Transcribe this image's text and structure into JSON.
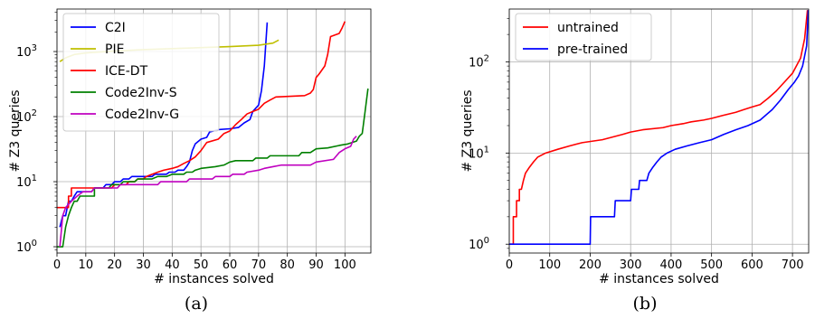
{
  "chart_data": [
    {
      "id": "a",
      "type": "line",
      "caption": "(a)",
      "xlabel": "# instances solved",
      "ylabel": "# Z3 queries",
      "yscale": "log",
      "xlim": [
        0,
        109
      ],
      "ylim": [
        0.8,
        4500
      ],
      "xticks": [
        0,
        10,
        20,
        30,
        40,
        50,
        60,
        70,
        80,
        90,
        100
      ],
      "yticks": [
        {
          "value": 1,
          "base": "10",
          "exp": "0"
        },
        {
          "value": 10,
          "base": "10",
          "exp": "1"
        },
        {
          "value": 100,
          "base": "10",
          "exp": "2"
        },
        {
          "value": 1000,
          "base": "10",
          "exp": "3"
        }
      ],
      "grid": true,
      "legend_position": "top-left",
      "series": [
        {
          "name": "C2I",
          "color": "#0000ff",
          "points": [
            [
              1,
              2
            ],
            [
              2,
              3
            ],
            [
              3,
              3
            ],
            [
              4,
              5
            ],
            [
              5,
              5
            ],
            [
              6,
              6
            ],
            [
              7,
              7
            ],
            [
              12,
              7
            ],
            [
              13,
              8
            ],
            [
              16,
              8
            ],
            [
              17,
              9
            ],
            [
              19,
              9
            ],
            [
              20,
              10
            ],
            [
              22,
              10
            ],
            [
              23,
              11
            ],
            [
              25,
              11
            ],
            [
              26,
              12
            ],
            [
              33,
              12
            ],
            [
              34,
              13
            ],
            [
              38,
              13
            ],
            [
              39,
              14
            ],
            [
              41,
              14
            ],
            [
              42,
              15
            ],
            [
              44,
              15
            ],
            [
              45,
              17
            ],
            [
              46,
              20
            ],
            [
              47,
              30
            ],
            [
              48,
              38
            ],
            [
              50,
              45
            ],
            [
              52,
              48
            ],
            [
              53,
              58
            ],
            [
              56,
              63
            ],
            [
              60,
              65
            ],
            [
              63,
              68
            ],
            [
              65,
              80
            ],
            [
              67,
              90
            ],
            [
              68,
              120
            ],
            [
              70,
              150
            ],
            [
              71,
              250
            ],
            [
              72,
              600
            ],
            [
              73,
              2800
            ]
          ]
        },
        {
          "name": "PIE",
          "color": "#bfbf00",
          "points": [
            [
              1,
              700
            ],
            [
              3,
              800
            ],
            [
              6,
              900
            ],
            [
              10,
              950
            ],
            [
              20,
              1020
            ],
            [
              30,
              1070
            ],
            [
              40,
              1110
            ],
            [
              50,
              1150
            ],
            [
              60,
              1190
            ],
            [
              70,
              1250
            ],
            [
              75,
              1350
            ],
            [
              77,
              1500
            ]
          ]
        },
        {
          "name": "ICE-DT",
          "color": "#ff0000",
          "points": [
            [
              0,
              4
            ],
            [
              4,
              4
            ],
            [
              4,
              6
            ],
            [
              5,
              6
            ],
            [
              5,
              8
            ],
            [
              19,
              8
            ],
            [
              20,
              9
            ],
            [
              24,
              9
            ],
            [
              25,
              10
            ],
            [
              27,
              10
            ],
            [
              28,
              11
            ],
            [
              30,
              11
            ],
            [
              31,
              12
            ],
            [
              33,
              13
            ],
            [
              35,
              14
            ],
            [
              37,
              15
            ],
            [
              40,
              16
            ],
            [
              42,
              17
            ],
            [
              44,
              19
            ],
            [
              46,
              21
            ],
            [
              48,
              24
            ],
            [
              50,
              30
            ],
            [
              52,
              40
            ],
            [
              56,
              45
            ],
            [
              58,
              55
            ],
            [
              60,
              60
            ],
            [
              62,
              75
            ],
            [
              64,
              90
            ],
            [
              66,
              110
            ],
            [
              68,
              120
            ],
            [
              70,
              130
            ],
            [
              72,
              160
            ],
            [
              74,
              180
            ],
            [
              76,
              200
            ],
            [
              86,
              210
            ],
            [
              88,
              230
            ],
            [
              89,
              260
            ],
            [
              90,
              400
            ],
            [
              91,
              450
            ],
            [
              93,
              600
            ],
            [
              94,
              900
            ],
            [
              95,
              1700
            ],
            [
              98,
              1900
            ],
            [
              99,
              2300
            ],
            [
              100,
              2900
            ]
          ]
        },
        {
          "name": "Code2Inv-S",
          "color": "#008000",
          "points": [
            [
              0,
              1
            ],
            [
              2,
              1
            ],
            [
              3,
              2
            ],
            [
              4,
              3
            ],
            [
              5,
              4
            ],
            [
              6,
              5
            ],
            [
              7,
              5
            ],
            [
              8,
              6
            ],
            [
              13,
              6
            ],
            [
              13,
              8
            ],
            [
              18,
              8
            ],
            [
              19,
              9
            ],
            [
              22,
              9
            ],
            [
              23,
              10
            ],
            [
              27,
              10
            ],
            [
              28,
              11
            ],
            [
              33,
              11
            ],
            [
              35,
              12
            ],
            [
              38,
              12
            ],
            [
              40,
              13
            ],
            [
              44,
              13
            ],
            [
              45,
              14
            ],
            [
              47,
              14
            ],
            [
              48,
              15
            ],
            [
              50,
              16
            ],
            [
              55,
              17
            ],
            [
              58,
              18
            ],
            [
              60,
              20
            ],
            [
              62,
              21
            ],
            [
              68,
              21
            ],
            [
              69,
              23
            ],
            [
              73,
              23
            ],
            [
              74,
              25
            ],
            [
              84,
              25
            ],
            [
              85,
              28
            ],
            [
              88,
              28
            ],
            [
              90,
              32
            ],
            [
              94,
              33
            ],
            [
              98,
              36
            ],
            [
              101,
              38
            ],
            [
              104,
              42
            ],
            [
              105,
              50
            ],
            [
              106,
              55
            ],
            [
              107,
              120
            ],
            [
              108,
              270
            ]
          ]
        },
        {
          "name": "Code2Inv-G",
          "color": "#bf00bf",
          "points": [
            [
              1,
              1
            ],
            [
              2,
              3
            ],
            [
              3,
              4
            ],
            [
              5,
              5
            ],
            [
              7,
              6
            ],
            [
              9,
              7
            ],
            [
              12,
              7
            ],
            [
              13,
              8
            ],
            [
              21,
              8
            ],
            [
              22,
              9
            ],
            [
              35,
              9
            ],
            [
              36,
              10
            ],
            [
              45,
              10
            ],
            [
              46,
              11
            ],
            [
              54,
              11
            ],
            [
              55,
              12
            ],
            [
              60,
              12
            ],
            [
              61,
              13
            ],
            [
              65,
              13
            ],
            [
              66,
              14
            ],
            [
              70,
              15
            ],
            [
              72,
              16
            ],
            [
              75,
              17
            ],
            [
              78,
              18
            ],
            [
              88,
              18
            ],
            [
              90,
              20
            ],
            [
              96,
              22
            ],
            [
              98,
              28
            ],
            [
              100,
              32
            ],
            [
              102,
              35
            ],
            [
              103,
              45
            ],
            [
              104,
              50
            ]
          ]
        }
      ]
    },
    {
      "id": "b",
      "type": "line",
      "caption": "(b)",
      "xlabel": "# instances solved",
      "ylabel": "# Z3 queries",
      "yscale": "log",
      "xlim": [
        0,
        740
      ],
      "ylim": [
        0.8,
        380
      ],
      "xticks": [
        0,
        100,
        200,
        300,
        400,
        500,
        600,
        700
      ],
      "yticks": [
        {
          "value": 1,
          "base": "10",
          "exp": "0"
        },
        {
          "value": 10,
          "base": "10",
          "exp": "1"
        },
        {
          "value": 100,
          "base": "10",
          "exp": "2"
        }
      ],
      "grid": true,
      "legend_position": "top-left",
      "series": [
        {
          "name": "untrained",
          "color": "#ff0000",
          "points": [
            [
              0,
              1
            ],
            [
              10,
              1
            ],
            [
              10,
              2
            ],
            [
              18,
              2
            ],
            [
              18,
              3
            ],
            [
              25,
              3
            ],
            [
              25,
              4
            ],
            [
              30,
              4
            ],
            [
              35,
              5
            ],
            [
              40,
              6
            ],
            [
              50,
              7
            ],
            [
              60,
              8
            ],
            [
              70,
              9
            ],
            [
              90,
              10
            ],
            [
              120,
              11
            ],
            [
              150,
              12
            ],
            [
              180,
              13
            ],
            [
              230,
              14
            ],
            [
              280,
              16
            ],
            [
              300,
              17
            ],
            [
              330,
              18
            ],
            [
              380,
              19
            ],
            [
              400,
              20
            ],
            [
              430,
              21
            ],
            [
              450,
              22
            ],
            [
              480,
              23
            ],
            [
              500,
              24
            ],
            [
              530,
              26
            ],
            [
              560,
              28
            ],
            [
              580,
              30
            ],
            [
              600,
              32
            ],
            [
              620,
              34
            ],
            [
              640,
              40
            ],
            [
              660,
              48
            ],
            [
              680,
              60
            ],
            [
              700,
              75
            ],
            [
              720,
              110
            ],
            [
              730,
              180
            ],
            [
              737,
              370
            ]
          ]
        },
        {
          "name": "pre-trained",
          "color": "#0000ff",
          "points": [
            [
              0,
              1
            ],
            [
              200,
              1
            ],
            [
              201,
              2
            ],
            [
              260,
              2
            ],
            [
              262,
              3
            ],
            [
              300,
              3
            ],
            [
              302,
              4
            ],
            [
              320,
              4
            ],
            [
              322,
              5
            ],
            [
              340,
              5
            ],
            [
              345,
              6
            ],
            [
              355,
              7
            ],
            [
              365,
              8
            ],
            [
              375,
              9
            ],
            [
              390,
              10
            ],
            [
              410,
              11
            ],
            [
              440,
              12
            ],
            [
              470,
              13
            ],
            [
              500,
              14
            ],
            [
              530,
              16
            ],
            [
              560,
              18
            ],
            [
              590,
              20
            ],
            [
              620,
              23
            ],
            [
              650,
              30
            ],
            [
              670,
              38
            ],
            [
              690,
              50
            ],
            [
              705,
              60
            ],
            [
              715,
              70
            ],
            [
              725,
              90
            ],
            [
              735,
              150
            ],
            [
              739,
              370
            ]
          ]
        }
      ]
    }
  ]
}
